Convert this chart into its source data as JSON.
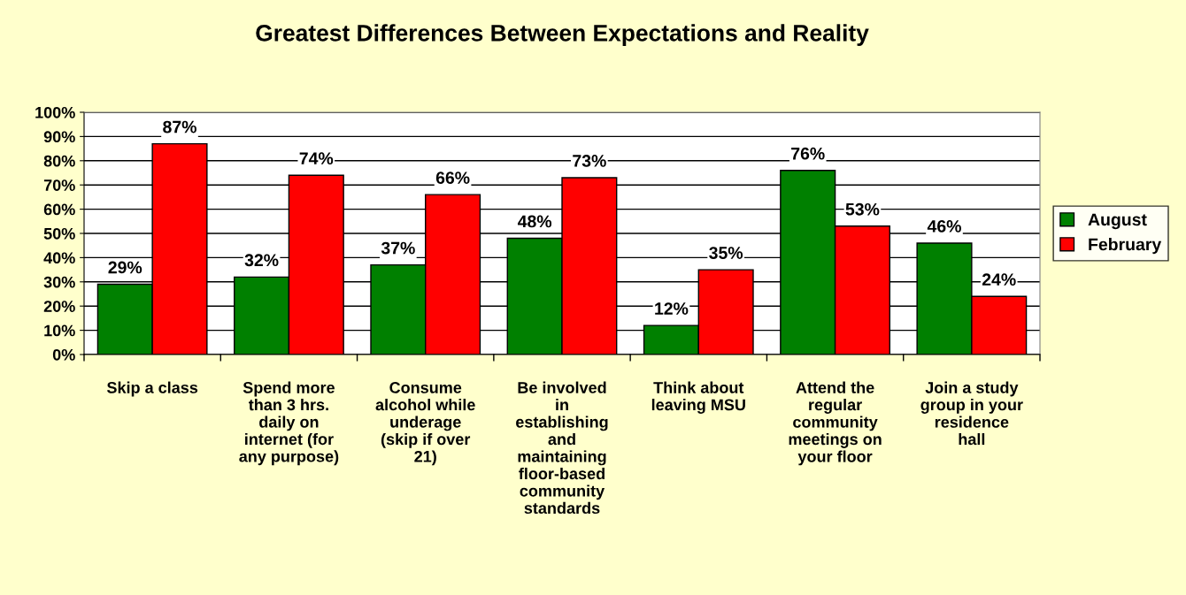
{
  "chart_data": {
    "type": "bar",
    "title": "Greatest Differences Between Expectations and Reality",
    "categories": [
      "Skip a class",
      "Spend more\nthan 3 hrs.\ndaily on\ninternet (for\nany purpose)",
      "Consume\nalcohol while\nunderage\n(skip if over\n21)",
      "Be involved\nin\nestablishing\nand\nmaintaining\nfloor-based\ncommunity\nstandards",
      "Think about\nleaving MSU",
      "Attend the\nregular\ncommunity\nmeetings on\nyour floor",
      "Join a study\ngroup in your\nresidence\nhall"
    ],
    "series": [
      {
        "name": "August",
        "color": "#008000",
        "values": [
          29,
          32,
          37,
          48,
          12,
          76,
          46
        ],
        "value_labels": [
          "29%",
          "32%",
          "37%",
          "48%",
          "12%",
          "76%",
          "46%"
        ]
      },
      {
        "name": "February",
        "color": "#ff0000",
        "values": [
          87,
          74,
          66,
          73,
          35,
          53,
          24
        ],
        "value_labels": [
          "87%",
          "74%",
          "66%",
          "73%",
          "35%",
          "53%",
          "24%"
        ]
      }
    ],
    "ylim": [
      0,
      100
    ],
    "yticks": [
      {
        "value": 0,
        "label": "0%"
      },
      {
        "value": 10,
        "label": "10%"
      },
      {
        "value": 20,
        "label": "20%"
      },
      {
        "value": 30,
        "label": "30%"
      },
      {
        "value": 40,
        "label": "40%"
      },
      {
        "value": 50,
        "label": "50%"
      },
      {
        "value": 60,
        "label": "60%"
      },
      {
        "value": 70,
        "label": "70%"
      },
      {
        "value": 80,
        "label": "80%"
      },
      {
        "value": 90,
        "label": "90%"
      },
      {
        "value": 100,
        "label": "100%"
      }
    ],
    "grid": "y",
    "legend": "right"
  }
}
